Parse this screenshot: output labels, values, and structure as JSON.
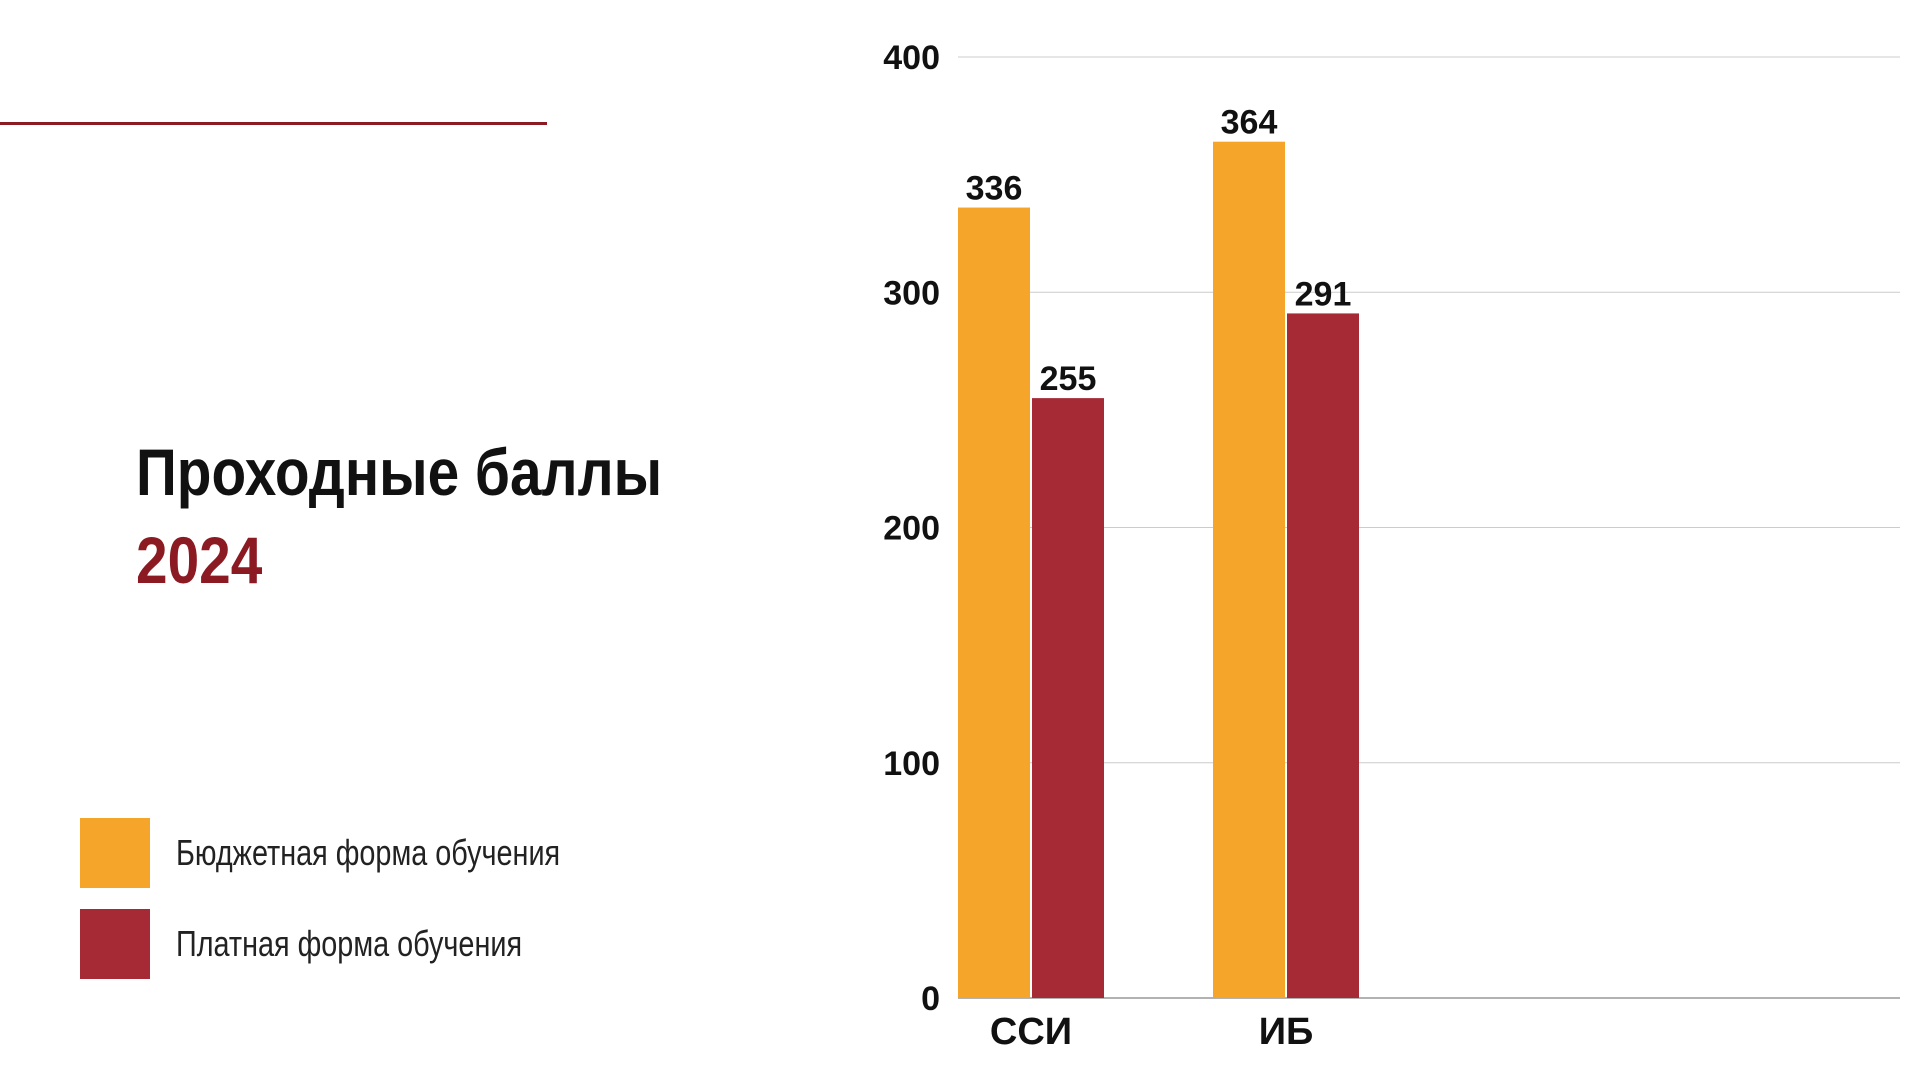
{
  "slide": {
    "title": "Проходные баллы",
    "year": "2024"
  },
  "legend": {
    "items": [
      {
        "label": "Бюджетная форма обучения",
        "color": "#f5a52a"
      },
      {
        "label": "Платная форма обучения",
        "color": "#a52a36"
      }
    ]
  },
  "colors": {
    "accent": "#8b1a22",
    "budget": "#f5a52a",
    "paid": "#a52a36",
    "grid": "#cccccc"
  },
  "chart_data": {
    "type": "bar",
    "title": "",
    "xlabel": "",
    "ylabel": "",
    "categories": [
      "ССИ",
      "ИБ"
    ],
    "series": [
      {
        "name": "Бюджетная форма обучения",
        "values": [
          336,
          364
        ]
      },
      {
        "name": "Платная форма обучения",
        "values": [
          255,
          291
        ]
      }
    ],
    "ylim": [
      0,
      400
    ],
    "yticks": [
      0,
      100,
      200,
      300,
      400
    ],
    "grid": true,
    "legend_position": "bottom-left"
  }
}
